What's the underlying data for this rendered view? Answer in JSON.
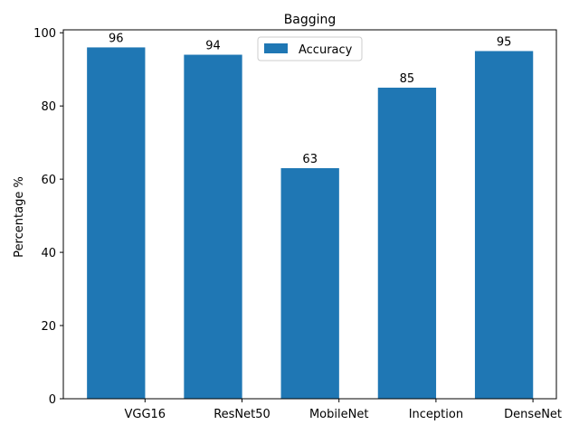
{
  "chart_data": {
    "type": "bar",
    "title": "Bagging",
    "xlabel": "",
    "ylabel": "Percentage %",
    "categories": [
      "VGG16",
      "ResNet50",
      "MobileNet",
      "Inception",
      "DenseNet"
    ],
    "series": [
      {
        "name": "Accuracy",
        "values": [
          96,
          94,
          63,
          85,
          95
        ],
        "color": "#1f77b4"
      }
    ],
    "ylim": [
      0,
      100.8
    ],
    "yticks": [
      0,
      20,
      40,
      60,
      80,
      100
    ],
    "grid": false,
    "legend_position": "top-center",
    "data_labels": true
  }
}
